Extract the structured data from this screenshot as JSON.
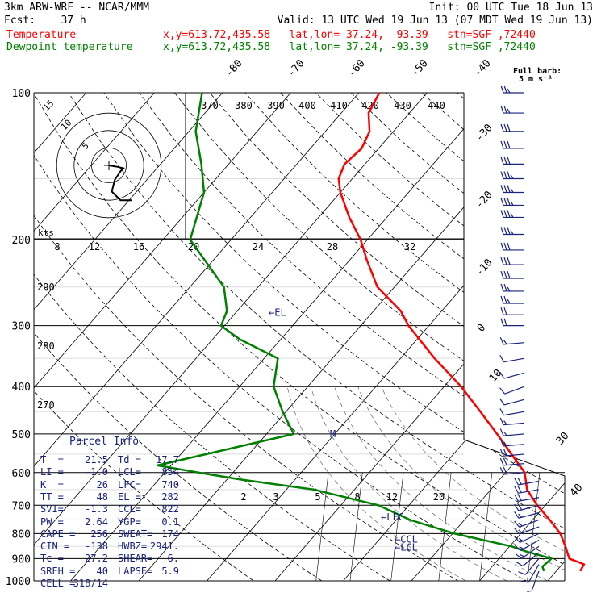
{
  "header": {
    "line1_left": "3km ARW-WRF -- NCAR/MMM",
    "line1_right": "Init: 00 UTC Tue 18 Jun 13",
    "line2_left": "Fcst:    37 h",
    "line2_right": "Valid: 13 UTC Wed 19 Jun 13 (07 MDT Wed 19 Jun 13)",
    "temp_label": "Temperature",
    "dew_label": "Dewpoint temperature",
    "location": "x,y=613.72,435.58   lat,lon= 37.24, -93.39   stn=SGF ,72440",
    "barb_legend_1": "Full barb:",
    "barb_legend_2": "5 m s⁻¹"
  },
  "colors": {
    "temperature": "#ff0000",
    "dewpoint": "#008000",
    "text": "#000000",
    "parcel_text": "#1a237e",
    "barbs": "#1a237e"
  },
  "chart_data": {
    "type": "line",
    "pressure_levels": [
      100,
      200,
      300,
      400,
      500,
      600,
      700,
      800,
      900,
      1000
    ],
    "pressure_labels": [
      "100",
      "200",
      "300",
      "400",
      "500",
      "600",
      "700",
      "800",
      "900",
      "1000"
    ],
    "isotherm_labels": [
      "-80",
      "-70",
      "-60",
      "-50",
      "-40",
      "-30",
      "-20",
      "-10",
      "0",
      "10",
      "30",
      "40"
    ],
    "theta_labels": [
      "370",
      "380",
      "390",
      "400",
      "410",
      "420",
      "430",
      "440"
    ],
    "theta_left_labels": [
      "290",
      "280",
      "270"
    ],
    "hodograph_ring_labels": [
      "15",
      "10",
      "5"
    ],
    "hodo_unit": "kts",
    "hodo_scale_labels": [
      "8",
      "12",
      "16",
      "20",
      "24",
      "28",
      "32"
    ],
    "mixing_ratio_labels": [
      "2",
      "3",
      "5",
      "8",
      "12",
      "20"
    ],
    "series": [
      {
        "name": "Temperature",
        "points": [
          [
            955,
            23.5
          ],
          [
            925,
            23.2
          ],
          [
            900,
            20.3
          ],
          [
            850,
            18.2
          ],
          [
            800,
            15.8
          ],
          [
            750,
            12.5
          ],
          [
            700,
            8.8
          ],
          [
            650,
            5.3
          ],
          [
            600,
            2.8
          ],
          [
            550,
            -1.5
          ],
          [
            500,
            -6.2
          ],
          [
            450,
            -11.5
          ],
          [
            400,
            -17.5
          ],
          [
            350,
            -25.0
          ],
          [
            300,
            -33.0
          ],
          [
            280,
            -36.0
          ],
          [
            250,
            -42.5
          ],
          [
            220,
            -47.5
          ],
          [
            200,
            -51.0
          ],
          [
            180,
            -55.5
          ],
          [
            160,
            -60.0
          ],
          [
            150,
            -62.0
          ],
          [
            140,
            -63.0
          ],
          [
            130,
            -62.5
          ],
          [
            120,
            -63.5
          ],
          [
            110,
            -66.0
          ],
          [
            100,
            -67.0
          ]
        ]
      },
      {
        "name": "Dewpoint temperature",
        "points": [
          [
            955,
            18.2
          ],
          [
            935,
            17.4
          ],
          [
            900,
            17.7
          ],
          [
            870,
            13.0
          ],
          [
            850,
            10.3
          ],
          [
            800,
            0.3
          ],
          [
            750,
            -8.0
          ],
          [
            700,
            -14.5
          ],
          [
            650,
            -26.0
          ],
          [
            620,
            -38.0
          ],
          [
            600,
            -45.0
          ],
          [
            580,
            -52.0
          ],
          [
            500,
            -36.0
          ],
          [
            450,
            -40.5
          ],
          [
            400,
            -45.0
          ],
          [
            350,
            -48.0
          ],
          [
            320,
            -56.0
          ],
          [
            300,
            -60.5
          ],
          [
            280,
            -61.5
          ],
          [
            250,
            -65.0
          ],
          [
            200,
            -76.0
          ],
          [
            160,
            -80.0
          ],
          [
            140,
            -84.0
          ],
          [
            120,
            -89.0
          ],
          [
            100,
            -93.0
          ]
        ]
      }
    ],
    "annotations": [
      {
        "text": "←EL",
        "p": 282
      },
      {
        "text": "M",
        "p": 500
      },
      {
        "text": "←LFC",
        "p": 740
      },
      {
        "text": "←CCL",
        "p": 822
      },
      {
        "text": "←LCL",
        "p": 854
      }
    ],
    "wind_barbs": {
      "pressures": [
        955,
        925,
        900,
        875,
        850,
        825,
        800,
        775,
        750,
        725,
        700,
        675,
        650,
        625,
        600,
        575,
        550,
        525,
        500,
        475,
        450,
        425,
        400,
        375,
        350,
        325,
        300,
        285,
        270,
        255,
        240,
        225,
        210,
        195,
        180,
        170,
        160,
        150,
        140,
        130,
        120,
        110,
        100
      ],
      "speed_ms": [
        6,
        8,
        10,
        12,
        13,
        14,
        15,
        15,
        16,
        17,
        18,
        18,
        19,
        19,
        19,
        18,
        18,
        17,
        16,
        14,
        12,
        11,
        10,
        11,
        12,
        16,
        20,
        22,
        24,
        26,
        28,
        30,
        32,
        33,
        34,
        35,
        34,
        33,
        32,
        30,
        28,
        26,
        24
      ],
      "dir_deg": [
        200,
        210,
        220,
        230,
        235,
        240,
        245,
        250,
        250,
        255,
        255,
        260,
        260,
        260,
        265,
        265,
        265,
        265,
        265,
        265,
        260,
        255,
        250,
        255,
        260,
        265,
        270,
        270,
        270,
        270,
        270,
        270,
        270,
        270,
        270,
        270,
        270,
        270,
        270,
        270,
        270,
        270,
        270
      ]
    },
    "hodograph_trace_kts": [
      [
        0,
        0
      ],
      [
        3,
        -0.5
      ],
      [
        5,
        -1
      ],
      [
        4,
        -2
      ],
      [
        2,
        -5
      ],
      [
        1,
        -9
      ],
      [
        4,
        -12
      ],
      [
        8,
        -12
      ]
    ]
  },
  "parcel_info": {
    "title": "Parcel Info",
    "rows": [
      {
        "a": "T  =",
        "b": "21.5",
        "c": "Td =",
        "d": "17.7"
      },
      {
        "a": "LI =",
        "b": "-1.0",
        "c": "LCL=",
        "d": "854"
      },
      {
        "a": "K  =",
        "b": "26",
        "c": "LFC=",
        "d": "740"
      },
      {
        "a": "TT =",
        "b": "48",
        "c": "EL =",
        "d": "282"
      },
      {
        "a": "SVI=",
        "b": "-1.3",
        "c": "CCL=",
        "d": "822"
      },
      {
        "a": "PW =",
        "b": "2.64",
        "c": "YGP=",
        "d": "0.1"
      },
      {
        "a": "CAPE =",
        "b": "256",
        "c": "SWEAT=",
        "d": "174"
      },
      {
        "a": "CIN =",
        "b": "-138",
        "c": "HWBZ=",
        "d": "2941."
      },
      {
        "a": "Tc =",
        "b": "27.2",
        "c": "SHEAR=",
        "d": "6."
      },
      {
        "a": "SREH =",
        "b": "40",
        "c": "LAPSE=",
        "d": "5.9"
      },
      {
        "a": "CELL =",
        "b": "318/14",
        "c": "",
        "d": ""
      }
    ]
  }
}
